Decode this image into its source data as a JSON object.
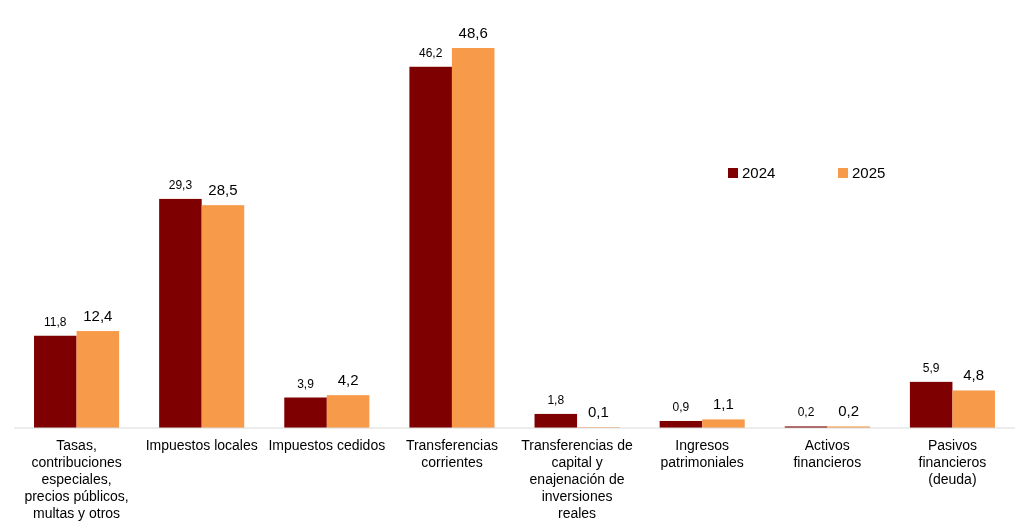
{
  "chart_data": {
    "type": "bar",
    "categories": [
      "Tasas, contribuciones especiales, precios públicos, multas y otros",
      "Impuestos locales",
      "Impuestos cedidos",
      "Transferencias corrientes",
      "Transferencias de capital y enajenación de inversiones reales",
      "Ingresos patrimoniales",
      "Activos financieros",
      "Pasivos financieros (deuda)"
    ],
    "series": [
      {
        "name": "2024",
        "color": "#7f0000",
        "values": [
          11.8,
          29.3,
          3.9,
          46.2,
          1.8,
          0.9,
          0.2,
          5.9
        ],
        "value_labels": [
          "11,8",
          "29,3",
          "3,9",
          "46,2",
          "1,8",
          "0,9",
          "0,2",
          "5,9"
        ]
      },
      {
        "name": "2025",
        "color": "#f79a4a",
        "values": [
          12.4,
          28.5,
          4.2,
          48.6,
          0.1,
          1.1,
          0.2,
          4.8
        ],
        "value_labels": [
          "12,4",
          "28,5",
          "4,2",
          "48,6",
          "0,1",
          "1,1",
          "0,2",
          "4,8"
        ]
      }
    ],
    "legend": "right",
    "grid": false
  }
}
